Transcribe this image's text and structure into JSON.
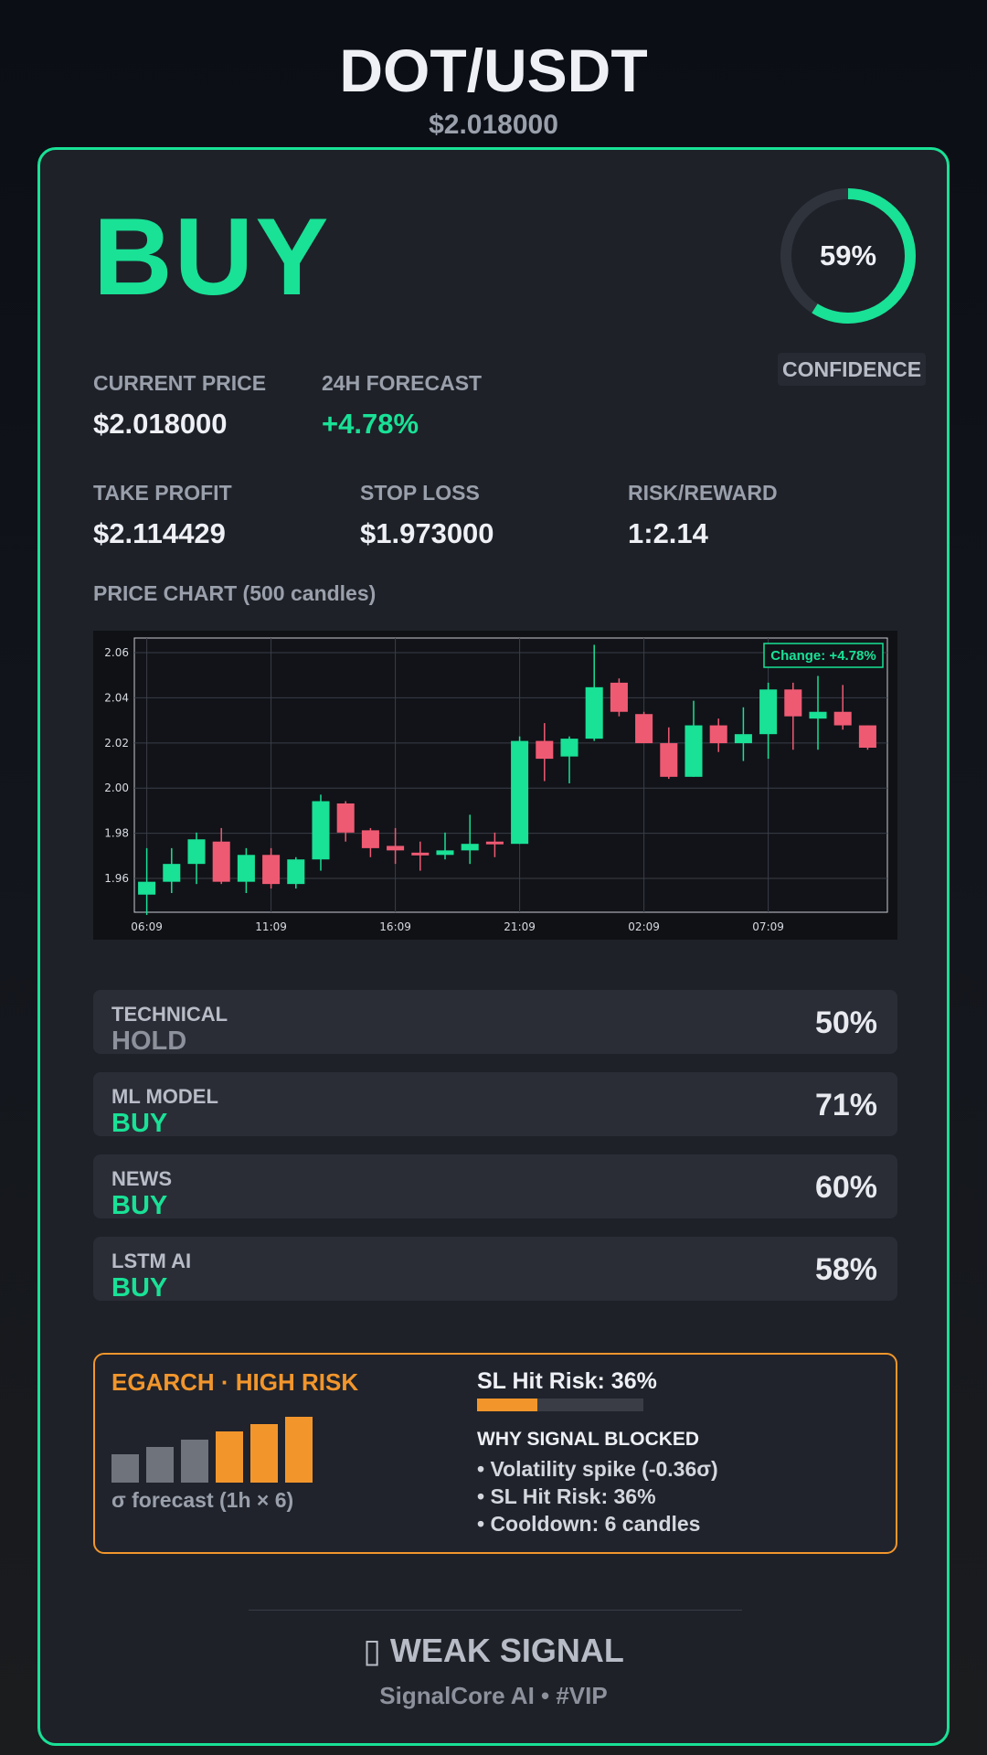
{
  "header": {
    "pair": "DOT/USDT",
    "price": "$2.018000"
  },
  "signal": {
    "action": "BUY",
    "confidence_label": "59%",
    "confidence_value": 0.59,
    "confidence_caption": "CONFIDENCE"
  },
  "metrics": {
    "current_price": {
      "label": "CURRENT PRICE",
      "value": "$2.018000"
    },
    "forecast_24h": {
      "label": "24H FORECAST",
      "value": "+4.78%"
    },
    "take_profit": {
      "label": "TAKE PROFIT",
      "value": "$2.114429"
    },
    "stop_loss": {
      "label": "STOP LOSS",
      "value": "$1.973000"
    },
    "risk_reward": {
      "label": "RISK/REWARD",
      "value": "1:2.14"
    }
  },
  "chart_title": "PRICE CHART (500 candles)",
  "chart_data": {
    "type": "candlestick",
    "annotation": "Change: +4.78%",
    "ylim": [
      1.945,
      2.0665
    ],
    "yticks": [
      "2.06",
      "2.04",
      "2.02",
      "2.00",
      "1.98",
      "1.96"
    ],
    "ytick_values": [
      2.06,
      2.04,
      2.02,
      2.0,
      1.98,
      1.96
    ],
    "xticks": [
      "06:09",
      "11:09",
      "16:09",
      "21:09",
      "02:09",
      "07:09"
    ],
    "xtick_index": [
      0,
      5,
      10,
      15,
      20,
      25
    ],
    "grid": true,
    "colors": {
      "up": "#19e196",
      "down": "#ef5a73"
    },
    "candles": [
      {
        "o": 1.9528,
        "h": 1.9734,
        "l": 1.9438,
        "c": 1.9585
      },
      {
        "o": 1.9585,
        "h": 1.9734,
        "l": 1.9535,
        "c": 1.9664
      },
      {
        "o": 1.9664,
        "h": 1.9803,
        "l": 1.9575,
        "c": 1.9773
      },
      {
        "o": 1.9763,
        "h": 1.9823,
        "l": 1.9575,
        "c": 1.9585
      },
      {
        "o": 1.9585,
        "h": 1.9734,
        "l": 1.9535,
        "c": 1.9704
      },
      {
        "o": 1.9704,
        "h": 1.9734,
        "l": 1.9555,
        "c": 1.9575
      },
      {
        "o": 1.9575,
        "h": 1.9694,
        "l": 1.9555,
        "c": 1.9684
      },
      {
        "o": 1.9684,
        "h": 1.9971,
        "l": 1.9634,
        "c": 1.9942
      },
      {
        "o": 1.9932,
        "h": 1.9942,
        "l": 1.9763,
        "c": 1.9803
      },
      {
        "o": 1.9813,
        "h": 1.9823,
        "l": 1.9694,
        "c": 1.9734
      },
      {
        "o": 1.9744,
        "h": 1.9823,
        "l": 1.9664,
        "c": 1.9724
      },
      {
        "o": 1.9714,
        "h": 1.9763,
        "l": 1.9634,
        "c": 1.9704
      },
      {
        "o": 1.9704,
        "h": 1.9803,
        "l": 1.9684,
        "c": 1.9724
      },
      {
        "o": 1.9724,
        "h": 1.9882,
        "l": 1.9664,
        "c": 1.9753
      },
      {
        "o": 1.9763,
        "h": 1.9803,
        "l": 1.9694,
        "c": 1.9753
      },
      {
        "o": 1.9753,
        "h": 2.0229,
        "l": 1.9753,
        "c": 2.0209
      },
      {
        "o": 2.0209,
        "h": 2.0288,
        "l": 2.0031,
        "c": 2.013
      },
      {
        "o": 2.014,
        "h": 2.0229,
        "l": 2.0021,
        "c": 2.0219
      },
      {
        "o": 2.0219,
        "h": 2.0635,
        "l": 2.0209,
        "c": 2.0447
      },
      {
        "o": 2.0467,
        "h": 2.0486,
        "l": 2.0318,
        "c": 2.0338
      },
      {
        "o": 2.0328,
        "h": 2.0338,
        "l": 2.0199,
        "c": 2.0199
      },
      {
        "o": 2.0199,
        "h": 2.0269,
        "l": 2.0041,
        "c": 2.005
      },
      {
        "o": 2.005,
        "h": 2.0387,
        "l": 2.005,
        "c": 2.0278
      },
      {
        "o": 2.0278,
        "h": 2.0308,
        "l": 2.016,
        "c": 2.0199
      },
      {
        "o": 2.0199,
        "h": 2.0358,
        "l": 2.012,
        "c": 2.0239
      },
      {
        "o": 2.0239,
        "h": 2.0467,
        "l": 2.013,
        "c": 2.0437
      },
      {
        "o": 2.0437,
        "h": 2.0467,
        "l": 2.017,
        "c": 2.0318
      },
      {
        "o": 2.0308,
        "h": 2.0497,
        "l": 2.017,
        "c": 2.0338
      },
      {
        "o": 2.0338,
        "h": 2.0457,
        "l": 2.0259,
        "c": 2.0278
      },
      {
        "o": 2.0278,
        "h": 2.0278,
        "l": 2.017,
        "c": 2.0179
      }
    ]
  },
  "factors": [
    {
      "name": "TECHNICAL",
      "signal": "HOLD",
      "pct": "50%"
    },
    {
      "name": "ML MODEL",
      "signal": "BUY",
      "pct": "71%"
    },
    {
      "name": "NEWS",
      "signal": "BUY",
      "pct": "60%"
    },
    {
      "name": "LSTM AI",
      "signal": "BUY",
      "pct": "58%"
    }
  ],
  "risk": {
    "title": "EGARCH · HIGH RISK",
    "sigma_label": "σ forecast (1h × 6)",
    "sigma_bars": [
      {
        "value": 0.43,
        "color": "#6f737c"
      },
      {
        "value": 0.54,
        "color": "#6f737c"
      },
      {
        "value": 0.65,
        "color": "#6f737c"
      },
      {
        "value": 0.78,
        "color": "#f2962c"
      },
      {
        "value": 0.89,
        "color": "#f2962c"
      },
      {
        "value": 1.0,
        "color": "#f2962c"
      }
    ],
    "sl_hit_label": "SL Hit Risk: 36%",
    "sl_hit_value": 0.36,
    "why_title": "WHY SIGNAL BLOCKED",
    "reasons": [
      "• Volatility spike (-0.36σ)",
      "• SL Hit Risk: 36%",
      "• Cooldown: 6 candles"
    ]
  },
  "footer": {
    "signal_strength": "▯ WEAK SIGNAL",
    "brand": "SignalCore AI • #VIP"
  }
}
